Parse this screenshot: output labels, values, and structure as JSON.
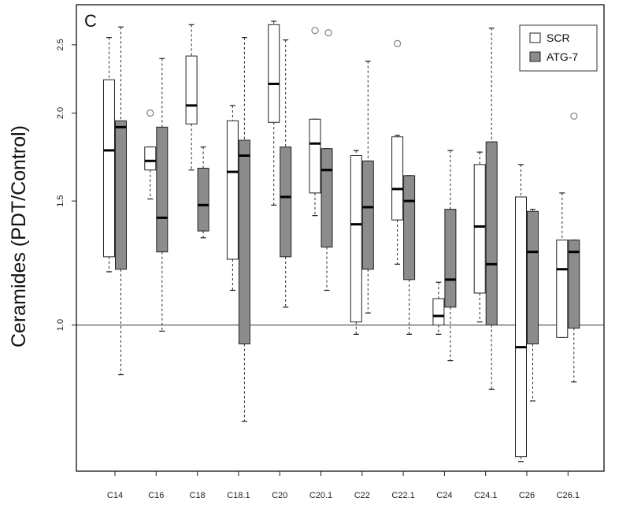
{
  "panel_label": "C",
  "chart_data": {
    "type": "box",
    "title": "",
    "xlabel": "",
    "ylabel": "Ceramides (PDT/Control)",
    "y_scale": "log",
    "ylim": [
      0.62,
      2.85
    ],
    "yticks": [
      1.0,
      1.5,
      2.0,
      2.5
    ],
    "ytick_labels": [
      "1.0",
      "1.5",
      "2.0",
      "2.5"
    ],
    "reference_line": 1.0,
    "legend": {
      "position": "top-right"
    },
    "categories": [
      "C14",
      "C16",
      "C18",
      "C18.1",
      "C20",
      "C20.1",
      "C22",
      "C22.1",
      "C24",
      "C24.1",
      "C26",
      "C26.1"
    ],
    "series": [
      {
        "name": "SCR",
        "color": "#ffffff",
        "boxes": [
          {
            "min": 1.19,
            "q1": 1.25,
            "median": 1.77,
            "q3": 2.23,
            "max": 2.56,
            "outliers": []
          },
          {
            "min": 1.51,
            "q1": 1.66,
            "median": 1.71,
            "q3": 1.79,
            "max": 1.79,
            "outliers": [
              2.0
            ]
          },
          {
            "min": 1.66,
            "q1": 1.93,
            "median": 2.05,
            "q3": 2.41,
            "max": 2.67,
            "outliers": []
          },
          {
            "min": 1.12,
            "q1": 1.24,
            "median": 1.65,
            "q3": 1.95,
            "max": 2.05,
            "outliers": []
          },
          {
            "min": 1.48,
            "q1": 1.94,
            "median": 2.2,
            "q3": 2.67,
            "max": 2.7,
            "outliers": []
          },
          {
            "min": 1.43,
            "q1": 1.54,
            "median": 1.81,
            "q3": 1.96,
            "max": 1.96,
            "outliers": [
              2.62,
              2.6
            ]
          },
          {
            "min": 0.97,
            "q1": 1.01,
            "median": 1.39,
            "q3": 1.74,
            "max": 1.77,
            "outliers": []
          },
          {
            "min": 1.22,
            "q1": 1.41,
            "median": 1.56,
            "q3": 1.85,
            "max": 1.86,
            "outliers": [
              2.51
            ]
          },
          {
            "min": 0.97,
            "q1": 1.0,
            "median": 1.03,
            "q3": 1.09,
            "max": 1.15,
            "outliers": []
          },
          {
            "min": 1.01,
            "q1": 1.11,
            "median": 1.38,
            "q3": 1.69,
            "max": 1.76,
            "outliers": []
          },
          {
            "min": 0.64,
            "q1": 0.65,
            "median": 0.93,
            "q3": 1.52,
            "max": 1.69,
            "outliers": []
          },
          {
            "min": 0.96,
            "q1": 0.96,
            "median": 1.2,
            "q3": 1.32,
            "max": 1.54,
            "outliers": []
          }
        ]
      },
      {
        "name": "ATG-7",
        "color": "#8c8c8c",
        "boxes": [
          {
            "min": 0.85,
            "q1": 1.2,
            "median": 1.91,
            "q3": 1.95,
            "max": 2.65,
            "outliers": []
          },
          {
            "min": 0.98,
            "q1": 1.27,
            "median": 1.42,
            "q3": 1.91,
            "max": 2.39,
            "outliers": []
          },
          {
            "min": 1.33,
            "q1": 1.36,
            "median": 1.48,
            "q3": 1.67,
            "max": 1.79,
            "outliers": []
          },
          {
            "min": 0.73,
            "q1": 0.94,
            "median": 1.74,
            "q3": 1.83,
            "max": 2.56,
            "outliers": []
          },
          {
            "min": 1.06,
            "q1": 1.25,
            "median": 1.52,
            "q3": 1.79,
            "max": 2.54,
            "outliers": []
          },
          {
            "min": 1.12,
            "q1": 1.29,
            "median": 1.66,
            "q3": 1.78,
            "max": 1.78,
            "outliers": []
          },
          {
            "min": 1.04,
            "q1": 1.2,
            "median": 1.47,
            "q3": 1.71,
            "max": 2.37,
            "outliers": []
          },
          {
            "min": 0.97,
            "q1": 1.16,
            "median": 1.5,
            "q3": 1.63,
            "max": 1.63,
            "outliers": []
          },
          {
            "min": 0.89,
            "q1": 1.06,
            "median": 1.16,
            "q3": 1.46,
            "max": 1.77,
            "outliers": []
          },
          {
            "min": 0.81,
            "q1": 1.0,
            "median": 1.22,
            "q3": 1.82,
            "max": 2.64,
            "outliers": []
          },
          {
            "min": 0.78,
            "q1": 0.94,
            "median": 1.27,
            "q3": 1.45,
            "max": 1.46,
            "outliers": []
          },
          {
            "min": 0.83,
            "q1": 0.99,
            "median": 1.27,
            "q3": 1.32,
            "max": 1.32,
            "outliers": [
              1.98
            ]
          }
        ]
      }
    ]
  }
}
